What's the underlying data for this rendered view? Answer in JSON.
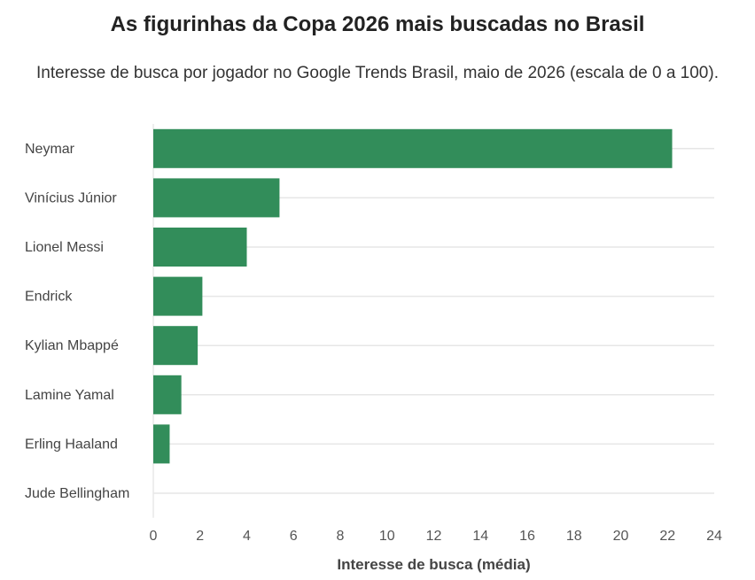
{
  "chart_data": {
    "type": "bar",
    "orientation": "horizontal",
    "title": "As figurinhas da Copa 2026 mais buscadas no Brasil",
    "subtitle": "Interesse de busca por jogador no Google Trends Brasil, maio de 2026 (escala de 0 a 100).",
    "categories": [
      "Neymar",
      "Vinícius Júnior",
      "Lionel Messi",
      "Endrick",
      "Kylian Mbappé",
      "Lamine Yamal",
      "Erling Haaland",
      "Jude Bellingham"
    ],
    "values": [
      22.2,
      5.4,
      4.0,
      2.1,
      1.9,
      1.2,
      0.7,
      0.0
    ],
    "xlabel": "Interesse de busca (média)",
    "ylabel": "",
    "xlim": [
      0,
      24
    ],
    "xticks": [
      0,
      2,
      4,
      6,
      8,
      10,
      12,
      14,
      16,
      18,
      20,
      22,
      24
    ],
    "grid": "horizontal",
    "legend": "none",
    "bar_color": "#2e8b57",
    "grid_color": "#e6e6e6"
  }
}
